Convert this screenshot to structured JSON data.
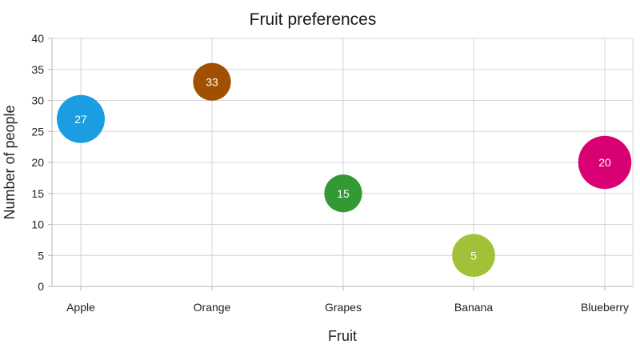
{
  "chart_data": {
    "type": "scatter",
    "title": "Fruit preferences",
    "xlabel": "Fruit",
    "ylabel": "Number of people",
    "categories": [
      "Apple",
      "Orange",
      "Grapes",
      "Banana",
      "Blueberry"
    ],
    "values": [
      27,
      33,
      15,
      5,
      20
    ],
    "bubble_sizes": [
      5,
      3,
      3,
      4,
      6
    ],
    "colors": [
      "#1b9de2",
      "#a05000",
      "#339933",
      "#a2c139",
      "#d80073"
    ],
    "ylim": [
      0,
      40
    ],
    "yticks": [
      0,
      5,
      10,
      15,
      20,
      25,
      30,
      35,
      40
    ],
    "yticks_labels": [
      "0",
      "5",
      "10",
      "15",
      "20",
      "25",
      "30",
      "35",
      "40"
    ],
    "grid": true,
    "data_labels": [
      "27",
      "33",
      "15",
      "5",
      "20"
    ]
  }
}
